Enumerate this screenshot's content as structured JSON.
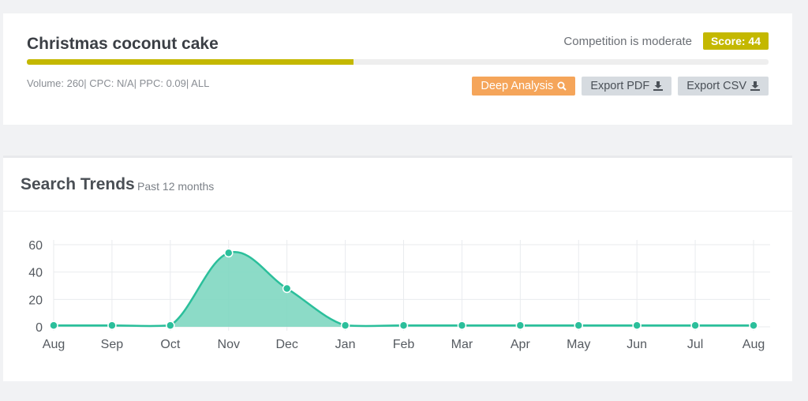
{
  "keyword": {
    "title": "Christmas coconut cake",
    "competition_text": "Competition is moderate",
    "score_label": "Score: 44",
    "progress_fraction": 0.44,
    "metrics": {
      "volume": "Volume: 260",
      "sep": "| ",
      "cpc": "CPC: N/A",
      "ppc": "PPC: 0.09",
      "scope": "ALL"
    }
  },
  "buttons": {
    "deep_analysis": "Deep Analysis",
    "export_pdf": "Export PDF",
    "export_csv": "Export CSV"
  },
  "icons": {
    "deep_analysis": "search-icon",
    "export": "download-icon"
  },
  "colors": {
    "accent": "#c4b800",
    "deep_button": "#f5a55a",
    "trend_line": "#2bbf9b",
    "trend_fill": "#7fd7c1"
  },
  "trends": {
    "title": "Search Trends",
    "subtitle": "Past 12 months"
  },
  "chart_data": {
    "type": "area",
    "categories": [
      "Aug",
      "Sep",
      "Oct",
      "Nov",
      "Dec",
      "Jan",
      "Feb",
      "Mar",
      "Apr",
      "May",
      "Jun",
      "Jul",
      "Aug"
    ],
    "values": [
      1,
      1,
      1,
      54,
      28,
      1,
      1,
      1,
      1,
      1,
      1,
      1,
      1
    ],
    "yticks": [
      0,
      20,
      40,
      60
    ],
    "ylim": [
      0,
      60
    ],
    "grid": true,
    "legend": "none"
  }
}
